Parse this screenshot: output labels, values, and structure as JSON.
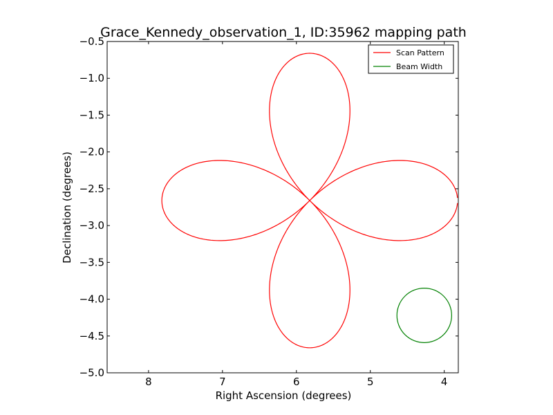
{
  "chart_data": {
    "type": "line",
    "title": "Grace_Kennedy_observation_1, ID:35962 mapping path",
    "xlabel": "Right Ascension (degrees)",
    "ylabel": "Declination (degrees)",
    "xlim": [
      8.56,
      3.81
    ],
    "ylim": [
      -5.0,
      -0.5
    ],
    "x_inverted": true,
    "xticks": [
      8,
      7,
      6,
      5,
      4
    ],
    "yticks": [
      -0.5,
      -1.0,
      -1.5,
      -2.0,
      -2.5,
      -3.0,
      -3.5,
      -4.0,
      -4.5,
      -5.0
    ],
    "tick_labels": {
      "x": [
        "8",
        "7",
        "6",
        "5",
        "4"
      ],
      "y": [
        "−0.5",
        "−1.0",
        "−1.5",
        "−2.0",
        "−2.5",
        "−3.0",
        "−3.5",
        "−4.0",
        "−4.5",
        "−5.0"
      ]
    },
    "grid": false,
    "legend_position": "top-right",
    "series": [
      {
        "name": "Scan Pattern",
        "color": "#ff0000",
        "kind": "four-petal-rose",
        "center": [
          5.82,
          -2.66
        ],
        "petal_length_ra": 2.0,
        "petal_length_dec": 2.0,
        "gap_near_ra": 7.82
      },
      {
        "name": "Beam Width",
        "color": "#008000",
        "kind": "circle",
        "center": [
          4.27,
          -4.22
        ],
        "radius": 0.37
      }
    ]
  }
}
